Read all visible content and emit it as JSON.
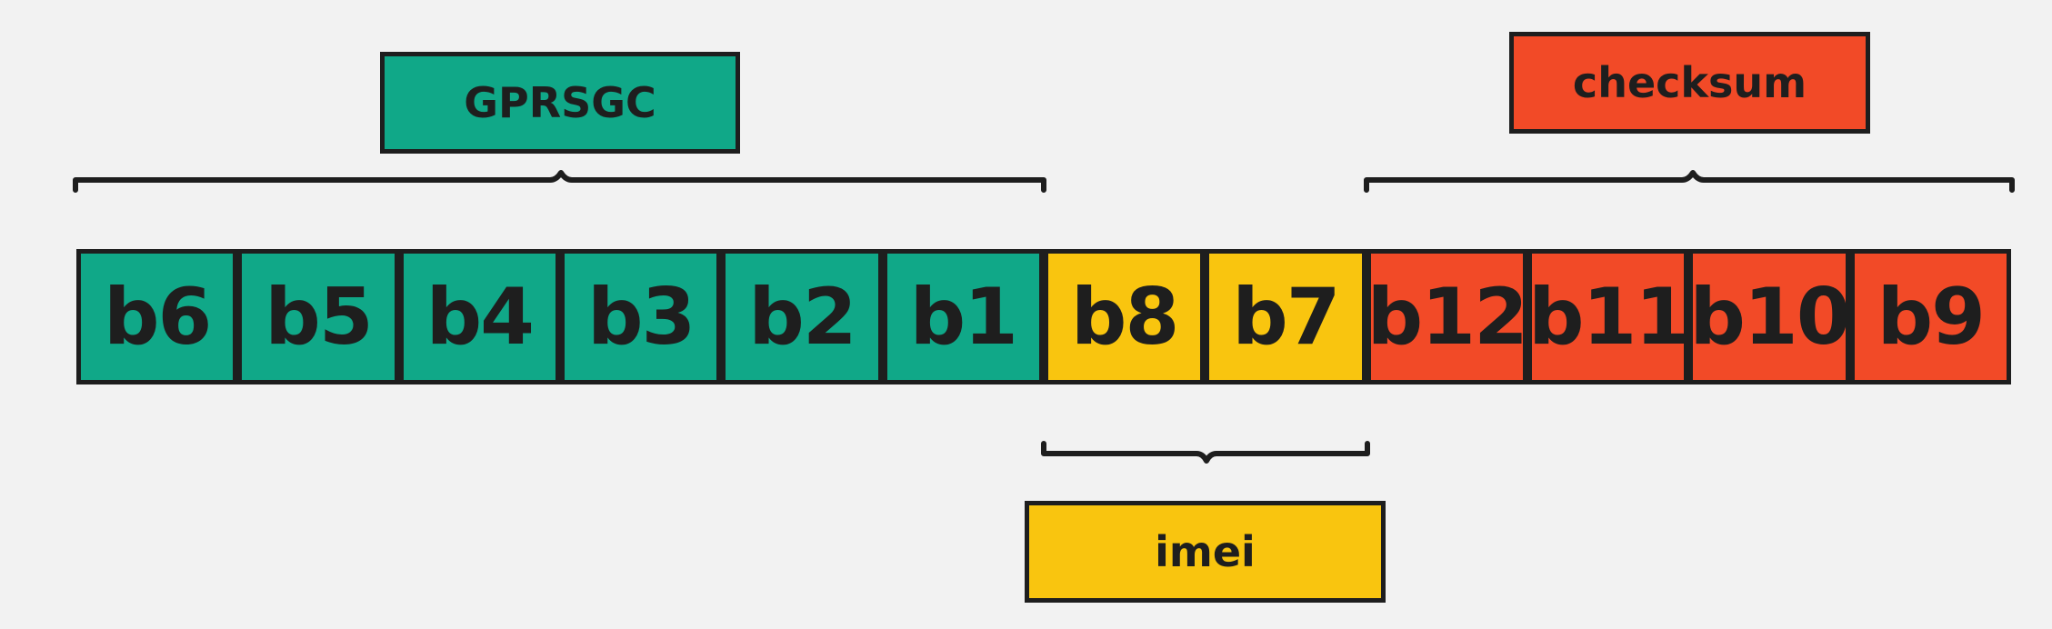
{
  "colors": {
    "background": "#f2f2f2",
    "teal": "#10a888",
    "yellow": "#f9c50f",
    "red": "#f24a27",
    "outline": "#1e1e1e"
  },
  "groups": {
    "gprsgc": {
      "label": "GPRSGC",
      "color": "#10a888"
    },
    "imei": {
      "label": "imei",
      "color": "#f9c50f"
    },
    "checksum": {
      "label": "checksum",
      "color": "#f24a27"
    }
  },
  "bytes": [
    {
      "label": "b6",
      "group": "gprsgc"
    },
    {
      "label": "b5",
      "group": "gprsgc"
    },
    {
      "label": "b4",
      "group": "gprsgc"
    },
    {
      "label": "b3",
      "group": "gprsgc"
    },
    {
      "label": "b2",
      "group": "gprsgc"
    },
    {
      "label": "b1",
      "group": "gprsgc"
    },
    {
      "label": "b8",
      "group": "imei"
    },
    {
      "label": "b7",
      "group": "imei"
    },
    {
      "label": "b12",
      "group": "checksum"
    },
    {
      "label": "b11",
      "group": "checksum"
    },
    {
      "label": "b10",
      "group": "checksum"
    },
    {
      "label": "b9",
      "group": "checksum"
    }
  ]
}
